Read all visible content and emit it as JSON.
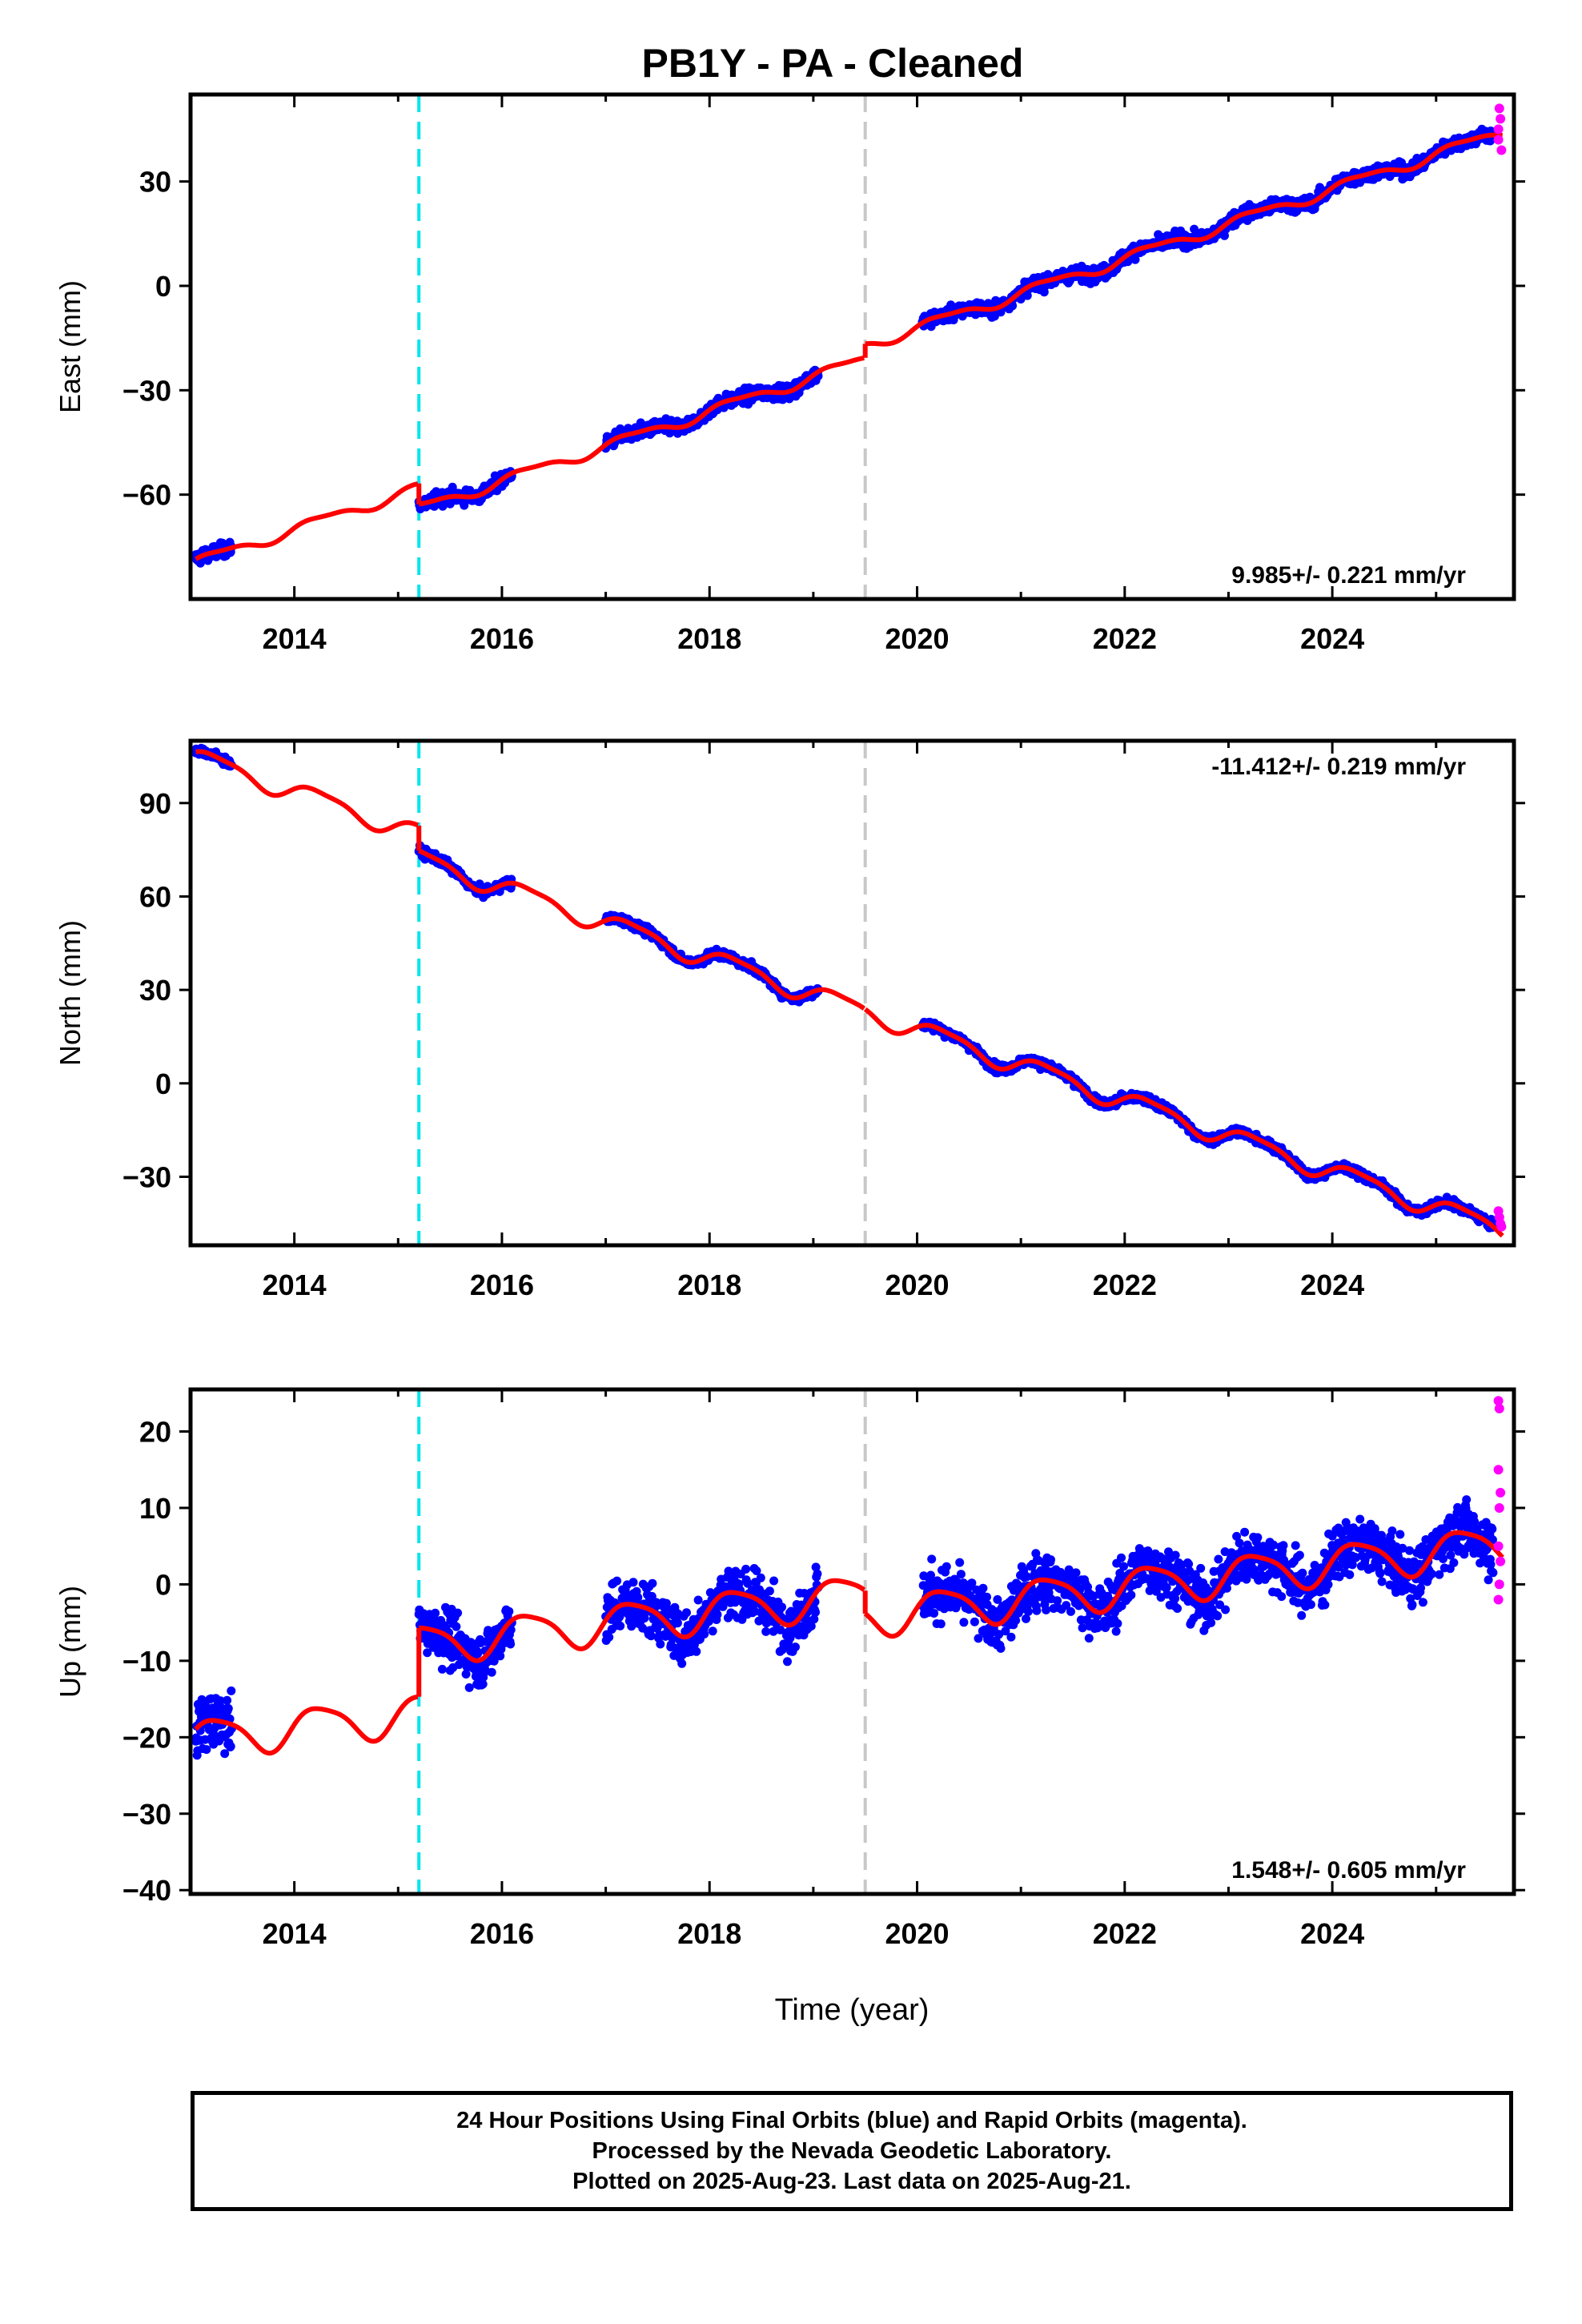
{
  "title": "PB1Y  - PA - Cleaned",
  "colors": {
    "final_orbits": "#0000ff",
    "rapid_orbits": "#ff00ff",
    "model": "#ff0000",
    "equipment_change": "#00e5ee",
    "other_offset": "#c8c8c8"
  },
  "x_axis": {
    "label": "Time (year)",
    "range": [
      2013.0,
      2025.75
    ],
    "ticks": [
      "2014",
      "2016",
      "2018",
      "2020",
      "2022",
      "2024"
    ]
  },
  "offsets": [
    {
      "x": 2015.2,
      "style": "dashed",
      "color": "cyan"
    },
    {
      "x": 2019.5,
      "style": "dashed",
      "color": "lightgray"
    }
  ],
  "footer": [
    "24 Hour Positions Using Final Orbits (blue) and Rapid Orbits (magenta).",
    "Processed by the Nevada Geodetic Laboratory.",
    "Plotted on 2025-Aug-23. Last data on 2025-Aug-21."
  ],
  "chart_data": [
    {
      "type": "scatter",
      "component": "east",
      "ylabel": "East (mm)",
      "ylim": [
        -90,
        55
      ],
      "yticks": [
        30,
        0,
        -30,
        -60
      ],
      "ytick_labels": [
        "30",
        "0",
        "−30",
        "−60"
      ],
      "rate_label": "9.985+/- 0.221 mm/yr",
      "rate_position": "bottom-right",
      "model": {
        "name": "model",
        "rate": 9.985,
        "anchor": [
          2013.2,
          -78
        ],
        "offsets": [
          {
            "x": 2015.2,
            "jump": -6
          },
          {
            "x": 2019.5,
            "jump": 4
          }
        ],
        "annual_amplitude": 1.5,
        "semiannual_amplitude": 0.5
      },
      "data_segments": [
        [
          2013.05,
          2013.4
        ],
        [
          2015.2,
          2016.1
        ],
        [
          2017.0,
          2019.05
        ],
        [
          2020.05,
          2025.55
        ]
      ],
      "scatter": 2.5,
      "rapid_points": [
        [
          2025.6,
          42
        ],
        [
          2025.6,
          45
        ],
        [
          2025.62,
          48
        ],
        [
          2025.61,
          51
        ],
        [
          2025.63,
          39
        ]
      ]
    },
    {
      "type": "scatter",
      "component": "north",
      "ylabel": "North (mm)",
      "ylim": [
        -52,
        110
      ],
      "yticks": [
        90,
        60,
        30,
        0,
        -30
      ],
      "ytick_labels": [
        "90",
        "60",
        "30",
        "0",
        "−30"
      ],
      "rate_label": "-11.412+/- 0.219 mm/yr",
      "rate_position": "top-right",
      "model": {
        "name": "model",
        "rate": -11.412,
        "anchor": [
          2013.2,
          103
        ],
        "offsets": [
          {
            "x": 2015.2,
            "jump": -8
          },
          {
            "x": 2019.5,
            "jump": 0
          }
        ],
        "annual_amplitude": 3.0,
        "semiannual_amplitude": 0.8
      },
      "data_segments": [
        [
          2013.05,
          2013.4
        ],
        [
          2015.2,
          2016.1
        ],
        [
          2017.0,
          2019.05
        ],
        [
          2020.05,
          2025.55
        ]
      ],
      "scatter": 1.8,
      "rapid_points": [
        [
          2025.6,
          -41
        ],
        [
          2025.61,
          -43
        ],
        [
          2025.62,
          -45
        ],
        [
          2025.63,
          -46
        ]
      ]
    },
    {
      "type": "scatter",
      "component": "up",
      "ylabel": "Up (mm)",
      "ylim": [
        -40.5,
        25.5
      ],
      "yticks": [
        20,
        10,
        0,
        -10,
        -20,
        -30,
        -40
      ],
      "ytick_labels": [
        "20",
        "10",
        "0",
        "−10",
        "−20",
        "−30",
        "−40"
      ],
      "rate_label": "1.548+/- 0.605 mm/yr",
      "rate_position": "bottom-right",
      "model": {
        "name": "model",
        "rate": 1.548,
        "anchor": [
          2013.2,
          -20
        ],
        "offsets": [
          {
            "x": 2015.2,
            "jump": 9
          },
          {
            "x": 2019.5,
            "jump": -3
          }
        ],
        "annual_amplitude": 2.5,
        "semiannual_amplitude": 0.5
      },
      "data_segments": [
        [
          2013.05,
          2013.4
        ],
        [
          2015.2,
          2016.1
        ],
        [
          2017.0,
          2019.05
        ],
        [
          2020.05,
          2025.55
        ]
      ],
      "scatter": 4.5,
      "rapid_points": [
        [
          2025.6,
          24
        ],
        [
          2025.61,
          23
        ],
        [
          2025.6,
          15
        ],
        [
          2025.62,
          12
        ],
        [
          2025.61,
          10
        ],
        [
          2025.6,
          5
        ],
        [
          2025.62,
          3
        ],
        [
          2025.61,
          0
        ],
        [
          2025.6,
          -2
        ]
      ]
    }
  ]
}
